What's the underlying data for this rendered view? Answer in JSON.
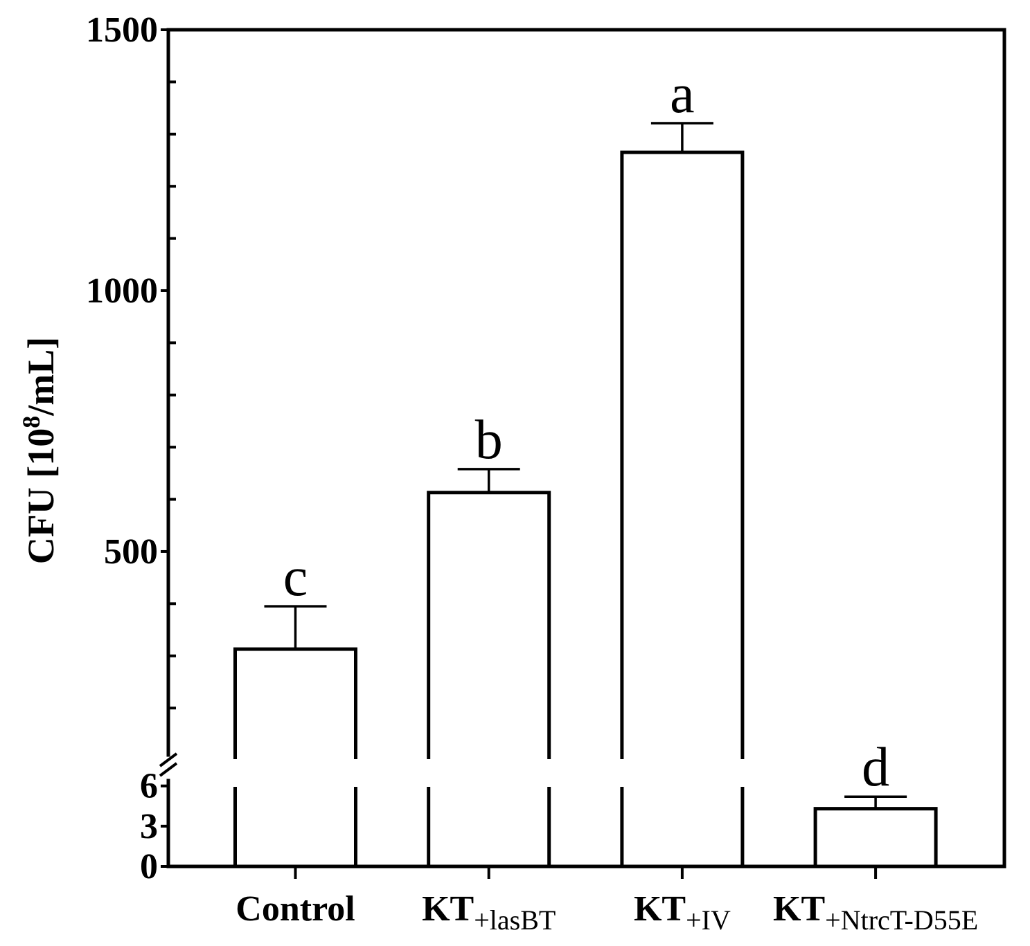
{
  "chart_data": {
    "type": "bar",
    "categories": [
      {
        "main": "Control"
      },
      {
        "main": "KT",
        "sub": "+lasBT"
      },
      {
        "main": "KT",
        "sub": "+IV"
      },
      {
        "main": "KT",
        "sub": "+NtrcT-D55E"
      }
    ],
    "values": [
      313,
      613,
      1265,
      4.3
    ],
    "error_upper": [
      82,
      45,
      56,
      0.9
    ],
    "significance_letters": [
      "c",
      "b",
      "a",
      "d"
    ],
    "ylabel": {
      "text": "CFU [10",
      "sup": "8",
      "tail": "/mL]"
    },
    "y_axis_broken": true,
    "y_segments": [
      {
        "range": [
          0,
          6.5
        ],
        "ticks": [
          0,
          3,
          6
        ]
      },
      {
        "range": [
          110,
          1500
        ],
        "ticks": [
          500,
          1000,
          1500
        ],
        "minor_step": 100
      }
    ],
    "grid": false,
    "colors": {
      "bar_fill": "#ffffff",
      "line": "#000000"
    }
  }
}
